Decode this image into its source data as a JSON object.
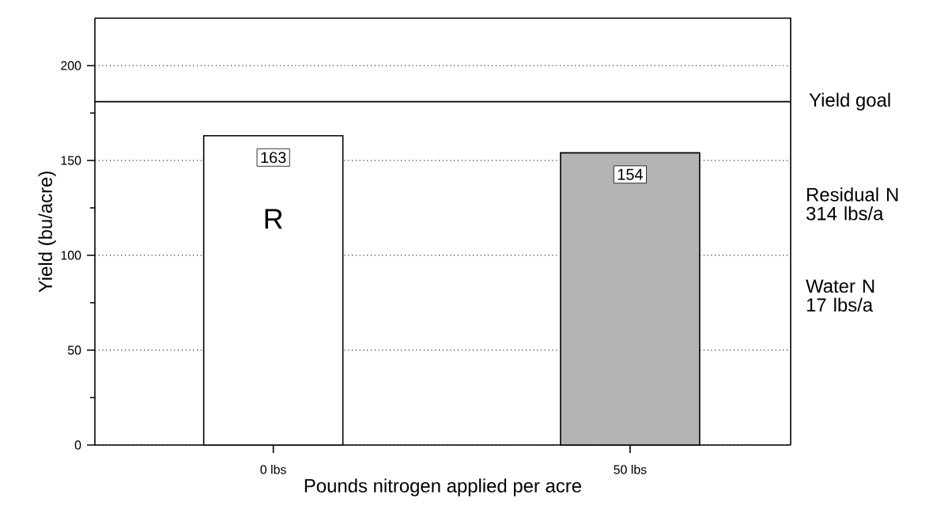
{
  "chart_data": {
    "type": "bar",
    "xlabel": "Pounds nitrogen applied per acre",
    "ylabel": "Yield (bu/acre)",
    "categories": [
      "0 lbs",
      "50 lbs"
    ],
    "values": [
      163,
      154
    ],
    "colors": [
      "#ffffff",
      "#b4b4b4"
    ],
    "data_labels": true,
    "ylim": [
      0,
      225
    ],
    "yticks": [
      0,
      {
        "value": 25,
        "label": null
      },
      50,
      {
        "value": 75,
        "label": null
      },
      100,
      {
        "value": 125,
        "label": null
      },
      150,
      {
        "value": 175,
        "label": null
      },
      200
    ],
    "grid": "y",
    "ref_lines": [
      {
        "axis": "y",
        "value": 181,
        "label": "Yield goal",
        "color": "#000000",
        "line_style": "solid"
      }
    ],
    "annotations": [
      "R",
      "Residual N\n314 lbs/a",
      "Water N\n17 lbs/a"
    ]
  }
}
